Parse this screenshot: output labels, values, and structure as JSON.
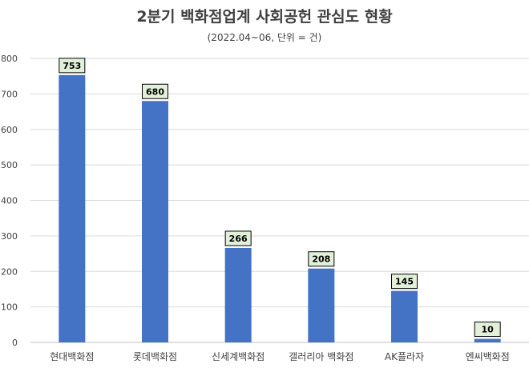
{
  "chart_data": {
    "type": "bar",
    "title": "2분기 백화점업계 사회공헌 관심도 현황",
    "subtitle": "(2022.04~06, 단위 = 건)",
    "categories": [
      "현대백화점",
      "롯데백화점",
      "신세계백화점",
      "갤러리아 백화점",
      "AK플라자",
      "엔씨백화점"
    ],
    "values": [
      753,
      680,
      266,
      208,
      145,
      10
    ],
    "ylim": [
      0,
      800
    ],
    "yticks": [
      0,
      100,
      200,
      300,
      400,
      500,
      600,
      700,
      800
    ],
    "grid": true,
    "bar_color": "#4472C4",
    "grid_color": "#D9D9D9",
    "label_bg_color": "#E2F0D9"
  }
}
